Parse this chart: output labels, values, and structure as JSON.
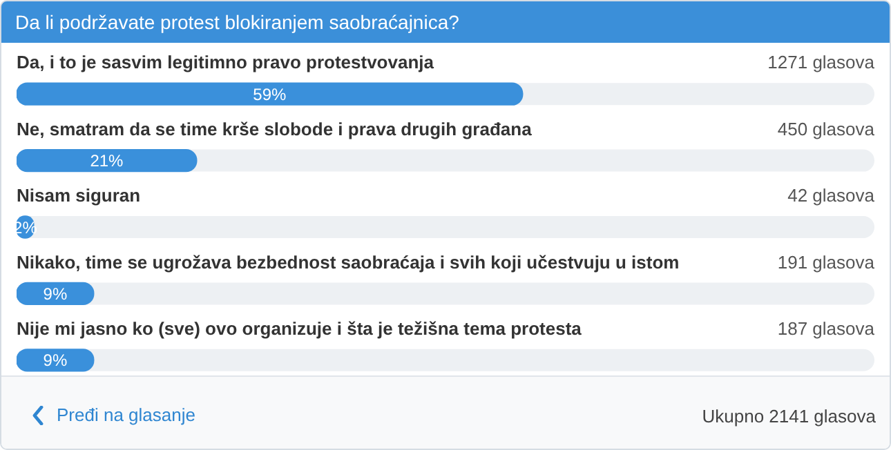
{
  "chart_data": {
    "type": "bar",
    "orientation": "horizontal",
    "title": "Da li podržavate protest blokiranjem saobraćajnica?",
    "categories": [
      "Da, i to je sasvim legitimno pravo protestvovanja",
      "Ne, smatram da se time krše slobode i prava drugih građana",
      "Nisam siguran",
      "Nikako, time se ugrožava bezbednost saobraćaja i svih koji učestvuju u istom",
      "Nije mi jasno ko (sve) ovo organizuje i šta je težišna tema protesta"
    ],
    "values": [
      59,
      21,
      2,
      9,
      9
    ],
    "value_labels": [
      "59%",
      "21%",
      "2%",
      "9%",
      "9%"
    ],
    "color": "#3a90db",
    "xlim": [
      0,
      100
    ],
    "tick_labels": false,
    "legend": false,
    "annotations": [
      "1271 glasova",
      "450 glasova",
      "42 glasova",
      "191 glasova",
      "187 glasova",
      "Pređi na glasanje",
      "Ukupno 2141 glasova"
    ]
  }
}
